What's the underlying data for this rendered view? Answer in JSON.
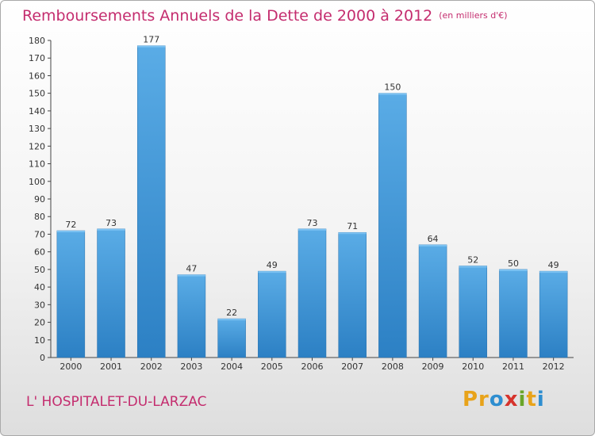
{
  "title": "Remboursements Annuels de la Dette de 2000 à 2012",
  "unit": "(en milliers d'€)",
  "town": "L' HOSPITALET-DU-LARZAC",
  "logo": [
    "Pr",
    "o",
    "x",
    "i",
    "t",
    "i"
  ],
  "colors": {
    "title": "#c42c6e",
    "bar_top": "#5aace6",
    "bar_bottom": "#2c80c4"
  },
  "chart_data": {
    "type": "bar",
    "title": "Remboursements Annuels de la Dette de 2000 à 2012",
    "subtitle": "(en milliers d'€)",
    "xlabel": "",
    "ylabel": "",
    "categories": [
      "2000",
      "2001",
      "2002",
      "2003",
      "2004",
      "2005",
      "2006",
      "2007",
      "2008",
      "2009",
      "2010",
      "2011",
      "2012"
    ],
    "values": [
      72,
      73,
      177,
      47,
      22,
      49,
      73,
      71,
      150,
      64,
      52,
      50,
      49
    ],
    "ylim": [
      0,
      180
    ],
    "yticks": [
      0,
      10,
      20,
      30,
      40,
      50,
      60,
      70,
      80,
      90,
      100,
      110,
      120,
      130,
      140,
      150,
      160,
      170,
      180
    ],
    "grid": false,
    "legend": "none",
    "data_labels": true
  }
}
